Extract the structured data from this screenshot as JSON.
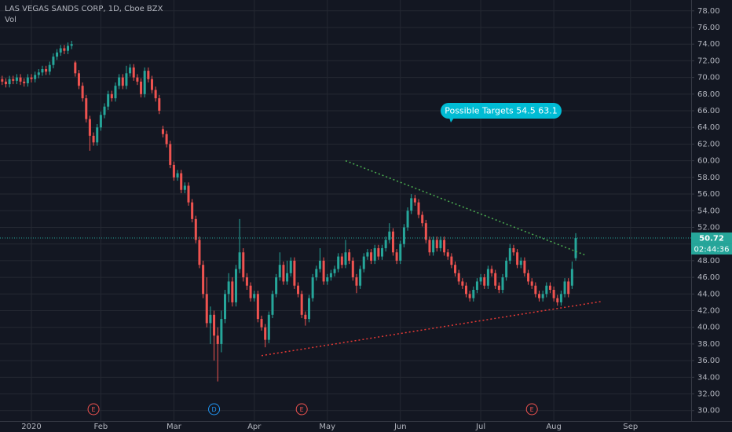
{
  "chart_data": {
    "type": "candlestick",
    "title": "LAS VEGAS SANDS CORP, 1D, Cboe BZX",
    "volume_label": "Vol",
    "up_color": "#26a69a",
    "down_color": "#ef5350",
    "grid": true,
    "xlim": [
      -0.6,
      188.6
    ],
    "xticks": [
      {
        "value": 8,
        "label": "2020"
      },
      {
        "value": 27,
        "label": "Feb"
      },
      {
        "value": 47,
        "label": "Mar"
      },
      {
        "value": 69,
        "label": "Apr"
      },
      {
        "value": 89,
        "label": "May"
      },
      {
        "value": 109,
        "label": "Jun"
      },
      {
        "value": 131,
        "label": "Jul"
      },
      {
        "value": 151,
        "label": "Aug"
      },
      {
        "value": 172,
        "label": "Sep"
      }
    ],
    "ylim": [
      28.75,
      79.3
    ],
    "yticks": [
      {
        "value": 30,
        "label": "30.00"
      },
      {
        "value": 32,
        "label": "32.00"
      },
      {
        "value": 34,
        "label": "34.00"
      },
      {
        "value": 36,
        "label": "36.00"
      },
      {
        "value": 38,
        "label": "38.00"
      },
      {
        "value": 40,
        "label": "40.00"
      },
      {
        "value": 42,
        "label": "42.00"
      },
      {
        "value": 44,
        "label": "44.00"
      },
      {
        "value": 46,
        "label": "46.00"
      },
      {
        "value": 48,
        "label": "48.00"
      },
      {
        "value": 50,
        "label": "50.00"
      },
      {
        "value": 52,
        "label": "52.00"
      },
      {
        "value": 54,
        "label": "54.00"
      },
      {
        "value": 56,
        "label": "56.00"
      },
      {
        "value": 58,
        "label": "58.00"
      },
      {
        "value": 60,
        "label": "60.00"
      },
      {
        "value": 62,
        "label": "62.00"
      },
      {
        "value": 64,
        "label": "64.00"
      },
      {
        "value": 66,
        "label": "66.00"
      },
      {
        "value": 68,
        "label": "68.00"
      },
      {
        "value": 70,
        "label": "70.00"
      },
      {
        "value": 72,
        "label": "72.00"
      },
      {
        "value": 74,
        "label": "74.00"
      },
      {
        "value": 76,
        "label": "76.00"
      },
      {
        "value": 78,
        "label": "78.00"
      }
    ],
    "candles": [
      [
        69.8,
        70.2,
        69.1,
        69.5
      ],
      [
        69.5,
        69.9,
        68.8,
        69.2
      ],
      [
        69.2,
        70.2,
        68.8,
        69.8
      ],
      [
        69.8,
        70.2,
        69.2,
        69.6
      ],
      [
        69.6,
        70.4,
        69.2,
        70.0
      ],
      [
        70.0,
        70.4,
        69.1,
        69.5
      ],
      [
        69.5,
        69.9,
        68.9,
        69.3
      ],
      [
        69.3,
        70.4,
        68.9,
        70.0
      ],
      [
        70.0,
        70.4,
        69.4,
        69.8
      ],
      [
        69.8,
        70.7,
        69.4,
        70.3
      ],
      [
        70.3,
        71.0,
        69.9,
        70.6
      ],
      [
        70.6,
        71.4,
        70.2,
        71.0
      ],
      [
        71.0,
        71.4,
        70.3,
        70.7
      ],
      [
        70.7,
        71.9,
        70.3,
        71.5
      ],
      [
        71.5,
        72.9,
        71.1,
        72.5
      ],
      [
        72.5,
        73.4,
        72.1,
        73.0
      ],
      [
        73.0,
        73.9,
        72.6,
        73.5
      ],
      [
        73.5,
        73.9,
        72.8,
        73.2
      ],
      [
        73.2,
        74.2,
        72.8,
        73.8
      ],
      [
        73.8,
        74.4,
        73.4,
        74.0
      ],
      [
        71.8,
        72.0,
        70.1,
        70.5
      ],
      [
        70.5,
        70.9,
        68.6,
        69.0
      ],
      [
        69.0,
        69.4,
        67.1,
        67.5
      ],
      [
        67.5,
        67.9,
        64.6,
        65.0
      ],
      [
        65.0,
        65.4,
        61.2,
        63.0
      ],
      [
        63.0,
        63.4,
        61.8,
        62.2
      ],
      [
        62.2,
        64.4,
        61.8,
        64.0
      ],
      [
        64.0,
        65.9,
        63.6,
        65.5
      ],
      [
        65.5,
        66.9,
        65.1,
        66.5
      ],
      [
        66.5,
        68.4,
        66.1,
        68.0
      ],
      [
        68.0,
        68.4,
        67.1,
        67.5
      ],
      [
        67.5,
        69.4,
        67.1,
        69.0
      ],
      [
        69.0,
        70.4,
        68.6,
        70.0
      ],
      [
        70.0,
        70.4,
        68.6,
        69.0
      ],
      [
        69.0,
        71.4,
        68.6,
        70.5
      ],
      [
        70.5,
        71.6,
        70.1,
        71.2
      ],
      [
        71.2,
        71.6,
        69.6,
        70.0
      ],
      [
        70.0,
        70.4,
        69.1,
        69.5
      ],
      [
        69.5,
        69.9,
        67.6,
        68.0
      ],
      [
        68.0,
        71.2,
        67.6,
        70.8
      ],
      [
        70.8,
        71.2,
        69.4,
        69.8
      ],
      [
        69.8,
        70.2,
        68.1,
        68.5
      ],
      [
        68.5,
        68.9,
        67.1,
        67.5
      ],
      [
        67.5,
        67.9,
        65.6,
        66.0
      ],
      [
        63.8,
        64.2,
        62.8,
        63.2
      ],
      [
        63.2,
        63.6,
        61.6,
        62.0
      ],
      [
        62.0,
        62.4,
        59.1,
        59.5
      ],
      [
        59.5,
        59.9,
        57.6,
        58.0
      ],
      [
        58.0,
        58.9,
        57.6,
        58.5
      ],
      [
        58.5,
        58.9,
        56.1,
        56.5
      ],
      [
        56.5,
        57.4,
        56.1,
        57.0
      ],
      [
        57.0,
        57.4,
        54.6,
        55.0
      ],
      [
        55.0,
        55.4,
        52.6,
        53.0
      ],
      [
        53.0,
        53.4,
        50.1,
        50.5
      ],
      [
        50.5,
        50.9,
        47.1,
        47.5
      ],
      [
        47.5,
        48.0,
        43.5,
        44.0
      ],
      [
        44.0,
        46.0,
        40.0,
        40.5
      ],
      [
        40.5,
        42.5,
        38.0,
        41.5
      ],
      [
        41.5,
        42.0,
        36.0,
        39.0
      ],
      [
        39.0,
        40.0,
        33.5,
        38.0
      ],
      [
        38.0,
        42.0,
        37.0,
        41.0
      ],
      [
        41.0,
        44.5,
        40.5,
        44.0
      ],
      [
        44.0,
        46.5,
        43.0,
        45.5
      ],
      [
        45.5,
        46.0,
        42.5,
        43.0
      ],
      [
        43.0,
        47.5,
        42.5,
        47.0
      ],
      [
        47.0,
        53.0,
        46.5,
        49.0
      ],
      [
        49.0,
        49.5,
        45.5,
        46.0
      ],
      [
        46.0,
        46.5,
        44.5,
        45.0
      ],
      [
        45.0,
        45.4,
        43.1,
        43.5
      ],
      [
        43.5,
        44.4,
        43.1,
        44.0
      ],
      [
        44.0,
        44.4,
        40.6,
        41.0
      ],
      [
        41.0,
        41.4,
        39.6,
        40.0
      ],
      [
        40.0,
        40.4,
        37.6,
        38.5
      ],
      [
        38.5,
        41.9,
        38.1,
        41.5
      ],
      [
        41.5,
        44.4,
        41.1,
        44.0
      ],
      [
        44.0,
        46.4,
        43.6,
        46.0
      ],
      [
        46.0,
        49.0,
        45.6,
        47.5
      ],
      [
        47.5,
        47.9,
        45.1,
        45.5
      ],
      [
        45.5,
        48.0,
        45.1,
        46.5
      ],
      [
        46.5,
        48.4,
        46.1,
        48.0
      ],
      [
        48.0,
        48.4,
        44.6,
        45.0
      ],
      [
        45.0,
        45.4,
        43.6,
        44.0
      ],
      [
        44.0,
        44.4,
        41.1,
        41.5
      ],
      [
        41.5,
        41.9,
        40.2,
        41.0
      ],
      [
        41.0,
        43.9,
        40.6,
        43.5
      ],
      [
        43.5,
        46.4,
        43.1,
        46.0
      ],
      [
        46.0,
        47.4,
        45.6,
        47.0
      ],
      [
        47.0,
        49.5,
        46.6,
        48.0
      ],
      [
        48.0,
        48.4,
        45.1,
        45.5
      ],
      [
        45.5,
        46.4,
        45.1,
        46.0
      ],
      [
        46.0,
        46.9,
        45.6,
        46.5
      ],
      [
        46.5,
        47.4,
        46.1,
        47.0
      ],
      [
        47.0,
        48.9,
        46.6,
        48.5
      ],
      [
        48.5,
        48.9,
        47.1,
        47.5
      ],
      [
        47.5,
        50.5,
        47.1,
        49.0
      ],
      [
        49.0,
        49.4,
        47.6,
        48.0
      ],
      [
        48.0,
        48.4,
        45.6,
        46.0
      ],
      [
        46.0,
        46.4,
        44.1,
        45.0
      ],
      [
        45.0,
        47.4,
        44.6,
        47.0
      ],
      [
        47.0,
        48.9,
        46.6,
        48.5
      ],
      [
        48.5,
        49.4,
        48.1,
        49.0
      ],
      [
        49.0,
        49.4,
        47.6,
        48.0
      ],
      [
        48.0,
        49.9,
        47.6,
        49.5
      ],
      [
        49.5,
        49.9,
        48.1,
        48.5
      ],
      [
        48.5,
        49.9,
        48.1,
        49.5
      ],
      [
        49.5,
        50.9,
        49.1,
        50.5
      ],
      [
        50.5,
        52.5,
        50.1,
        51.5
      ],
      [
        51.5,
        51.9,
        48.6,
        49.0
      ],
      [
        49.0,
        49.4,
        47.6,
        48.0
      ],
      [
        48.0,
        50.4,
        47.6,
        50.0
      ],
      [
        50.0,
        52.4,
        49.6,
        52.0
      ],
      [
        52.0,
        54.4,
        51.6,
        54.0
      ],
      [
        54.0,
        56.0,
        53.6,
        55.5
      ],
      [
        55.5,
        55.9,
        54.6,
        55.0
      ],
      [
        55.0,
        55.4,
        53.1,
        53.5
      ],
      [
        53.5,
        53.9,
        52.1,
        52.5
      ],
      [
        52.5,
        52.9,
        50.1,
        50.5
      ],
      [
        50.5,
        50.9,
        48.6,
        49.0
      ],
      [
        49.0,
        50.9,
        48.6,
        50.5
      ],
      [
        50.5,
        50.9,
        49.1,
        49.5
      ],
      [
        49.5,
        50.9,
        49.1,
        50.5
      ],
      [
        50.5,
        50.9,
        48.6,
        49.0
      ],
      [
        49.0,
        49.4,
        48.1,
        48.5
      ],
      [
        48.5,
        48.9,
        47.1,
        47.5
      ],
      [
        47.5,
        47.9,
        46.1,
        46.5
      ],
      [
        46.5,
        46.9,
        45.1,
        45.5
      ],
      [
        45.5,
        45.9,
        44.6,
        45.0
      ],
      [
        45.0,
        45.4,
        43.6,
        44.0
      ],
      [
        44.0,
        44.4,
        43.1,
        43.5
      ],
      [
        43.5,
        44.9,
        43.1,
        44.5
      ],
      [
        44.5,
        45.9,
        44.1,
        45.5
      ],
      [
        45.5,
        46.4,
        45.1,
        46.0
      ],
      [
        46.0,
        46.4,
        44.6,
        45.0
      ],
      [
        45.0,
        47.4,
        44.6,
        47.0
      ],
      [
        47.0,
        47.4,
        46.1,
        46.5
      ],
      [
        46.5,
        46.9,
        44.6,
        45.0
      ],
      [
        45.0,
        45.4,
        44.1,
        44.5
      ],
      [
        44.5,
        46.4,
        44.1,
        46.0
      ],
      [
        46.0,
        48.4,
        45.6,
        48.0
      ],
      [
        48.0,
        50.0,
        47.6,
        49.5
      ],
      [
        49.5,
        49.9,
        48.6,
        49.0
      ],
      [
        49.0,
        49.4,
        47.1,
        47.5
      ],
      [
        47.5,
        48.4,
        47.1,
        48.0
      ],
      [
        48.0,
        48.4,
        46.1,
        46.5
      ],
      [
        46.5,
        46.9,
        45.1,
        45.5
      ],
      [
        45.5,
        45.9,
        44.6,
        45.0
      ],
      [
        45.0,
        45.4,
        43.6,
        44.0
      ],
      [
        44.0,
        44.4,
        43.1,
        43.5
      ],
      [
        43.5,
        44.4,
        43.1,
        44.0
      ],
      [
        44.0,
        45.4,
        43.6,
        45.0
      ],
      [
        45.0,
        45.4,
        44.1,
        44.5
      ],
      [
        44.5,
        44.9,
        43.1,
        43.5
      ],
      [
        43.5,
        43.9,
        42.6,
        43.0
      ],
      [
        43.0,
        44.4,
        42.6,
        44.0
      ],
      [
        44.0,
        45.9,
        43.6,
        45.5
      ],
      [
        45.5,
        45.9,
        43.6,
        44.0
      ],
      [
        45.0,
        47.9,
        44.6,
        47.0
      ],
      [
        48.3,
        51.3,
        48.0,
        50.72
      ]
    ],
    "last_price": 50.72,
    "countdown": "02:44:36",
    "last_price_color": "#26a69a",
    "trendlines": [
      {
        "color": "#4caf50",
        "points": [
          [
            94,
            60
          ],
          [
            160,
            48.6
          ]
        ]
      },
      {
        "color": "#e53935",
        "points": [
          [
            71,
            36.6
          ],
          [
            164,
            43.1
          ]
        ]
      }
    ],
    "events": [
      {
        "label": "E",
        "x": 25,
        "color": "#ef5350"
      },
      {
        "label": "D",
        "x": 58,
        "color": "#2196f3"
      },
      {
        "label": "E",
        "x": 82,
        "color": "#ef5350"
      },
      {
        "label": "E",
        "x": 145,
        "color": "#ef5350"
      }
    ],
    "annotation": "Possible Targets  54.5  63.1"
  }
}
